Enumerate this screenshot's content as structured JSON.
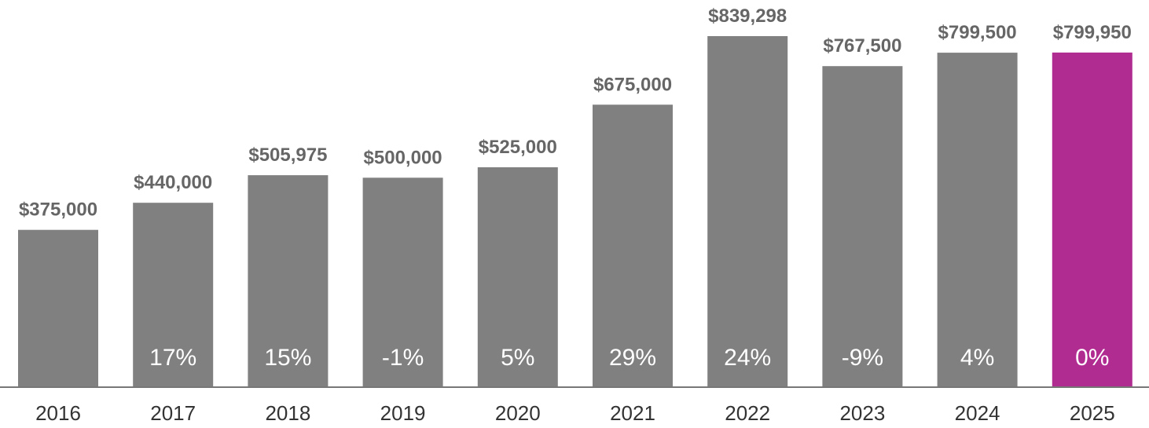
{
  "chart_data": {
    "type": "bar",
    "categories": [
      "2016",
      "2017",
      "2018",
      "2019",
      "2020",
      "2021",
      "2022",
      "2023",
      "2024",
      "2025"
    ],
    "values": [
      375000,
      440000,
      505975,
      500000,
      525000,
      675000,
      839298,
      767500,
      799500,
      799950
    ],
    "value_labels": [
      "$375,000",
      "$440,000",
      "$505,975",
      "$500,000",
      "$525,000",
      "$675,000",
      "$839,298",
      "$767,500",
      "$799,500",
      "$799,950"
    ],
    "change_labels": [
      "",
      "17%",
      "15%",
      "-1%",
      "5%",
      "29%",
      "24%",
      "-9%",
      "4%",
      "0%"
    ],
    "title": "",
    "xlabel": "",
    "ylabel": "",
    "ylim": [
      0,
      839298
    ],
    "grid": false,
    "legend": "none",
    "colors": {
      "bar": "#808080",
      "highlight": "#b02c90",
      "axis": "#777777"
    },
    "highlight_index": 9
  }
}
